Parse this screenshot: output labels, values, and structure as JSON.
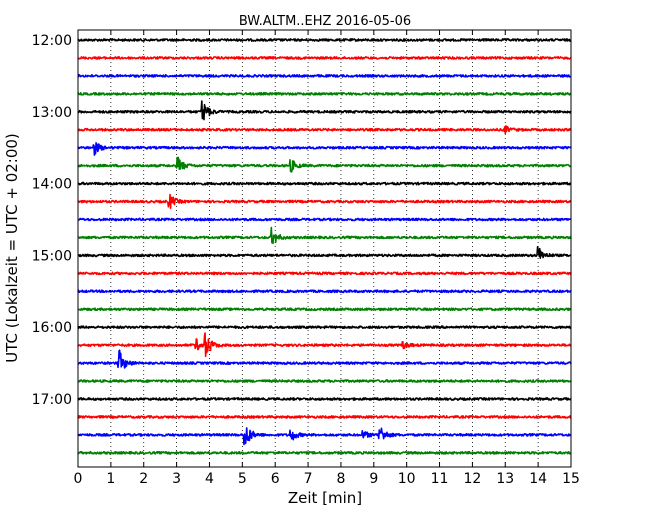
{
  "chart_data": {
    "type": "line",
    "title": "BW.ALTM..EHZ 2016-05-06",
    "xlabel": "Zeit  [min]",
    "ylabel": "UTC (Lokalzeit = UTC + 02:00)",
    "xlim": [
      0,
      15
    ],
    "x_ticks": [
      "0",
      "1",
      "2",
      "3",
      "4",
      "5",
      "6",
      "7",
      "8",
      "9",
      "10",
      "11",
      "12",
      "13",
      "14",
      "15"
    ],
    "y_tick_labels": [
      "12:00",
      "13:00",
      "14:00",
      "15:00",
      "16:00",
      "17:00"
    ],
    "grid": "vertical dotted at every minute",
    "row_interval_min": 15,
    "trace_colors": [
      "#000000",
      "#ff0000",
      "#0000ff",
      "#008000"
    ],
    "traces": [
      {
        "start": "12:00",
        "events": []
      },
      {
        "start": "12:15",
        "events": []
      },
      {
        "start": "12:30",
        "events": []
      },
      {
        "start": "12:45",
        "events": []
      },
      {
        "start": "13:00",
        "events": [
          {
            "t": 3.8,
            "amp": 1.0
          }
        ]
      },
      {
        "start": "13:15",
        "events": [
          {
            "t": 13.0,
            "amp": 0.3
          }
        ]
      },
      {
        "start": "13:30",
        "events": [
          {
            "t": 0.5,
            "amp": 0.6
          }
        ]
      },
      {
        "start": "13:45",
        "events": [
          {
            "t": 3.05,
            "amp": 0.7
          },
          {
            "t": 6.5,
            "amp": 0.5
          }
        ]
      },
      {
        "start": "14:00",
        "events": []
      },
      {
        "start": "14:15",
        "events": [
          {
            "t": 2.8,
            "amp": 0.6
          }
        ]
      },
      {
        "start": "14:30",
        "events": []
      },
      {
        "start": "14:45",
        "events": [
          {
            "t": 5.9,
            "amp": 0.8
          }
        ]
      },
      {
        "start": "15:00",
        "events": [
          {
            "t": 14.0,
            "amp": 0.8
          }
        ]
      },
      {
        "start": "15:15",
        "events": []
      },
      {
        "start": "15:30",
        "events": []
      },
      {
        "start": "15:45",
        "events": []
      },
      {
        "start": "16:00",
        "events": []
      },
      {
        "start": "16:15",
        "events": [
          {
            "t": 3.6,
            "amp": 0.5
          },
          {
            "t": 3.9,
            "amp": 1.0
          },
          {
            "t": 9.9,
            "amp": 0.3
          }
        ]
      },
      {
        "start": "16:30",
        "events": [
          {
            "t": 1.25,
            "amp": 1.2
          }
        ]
      },
      {
        "start": "16:45",
        "events": []
      },
      {
        "start": "17:00",
        "events": []
      },
      {
        "start": "17:15",
        "events": []
      },
      {
        "start": "17:30",
        "events": [
          {
            "t": 5.1,
            "amp": 1.1
          },
          {
            "t": 6.5,
            "amp": 0.5
          },
          {
            "t": 8.7,
            "amp": 0.3
          },
          {
            "t": 9.2,
            "amp": 0.8
          }
        ]
      },
      {
        "start": "17:45",
        "events": []
      }
    ]
  }
}
